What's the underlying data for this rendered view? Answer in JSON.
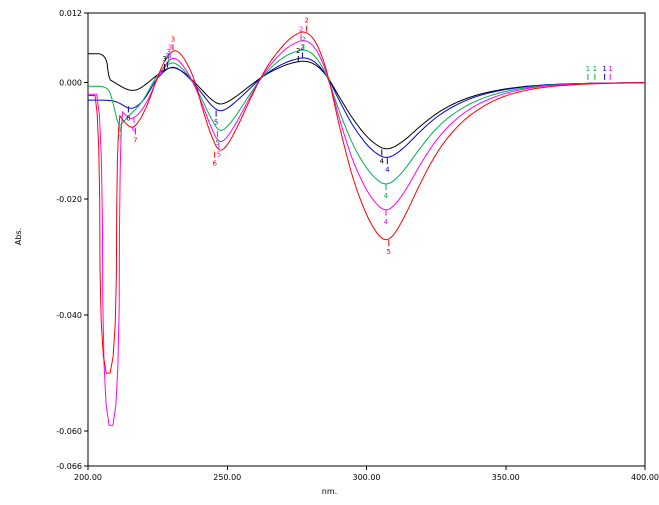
{
  "figure": {
    "background": "#ffffff"
  },
  "chart_data": {
    "type": "line",
    "title": "",
    "xlabel": "nm.",
    "ylabel": "Abs.",
    "xlim": [
      200,
      400
    ],
    "ylim": [
      -0.066,
      0.012
    ],
    "grid": false,
    "legend_position": "none",
    "x_ticks": [
      200,
      250,
      300,
      350,
      400
    ],
    "x_tick_labels": [
      "200.00",
      "250.00",
      "300.00",
      "350.00",
      "400.00"
    ],
    "y_ticks": [
      0.012,
      0,
      -0.02,
      -0.04,
      -0.06,
      -0.066
    ],
    "y_tick_labels": [
      "0.012",
      "0.000",
      "-0.020",
      "-0.040",
      "-0.060",
      "-0.066"
    ],
    "series": [
      {
        "name": "black",
        "color": "#000000",
        "points": [
          [
            200,
            0.005
          ],
          [
            206.5,
            0.005
          ],
          [
            207.5,
            0.0006
          ],
          [
            209,
            0.0002
          ],
          [
            211,
            -0.0004
          ],
          [
            214,
            -0.0012
          ],
          [
            217,
            -0.0014
          ],
          [
            220,
            -0.0006
          ],
          [
            224,
            0.001
          ],
          [
            227,
            0.0021
          ],
          [
            230,
            0.0027
          ],
          [
            233,
            0.0023
          ],
          [
            237,
            0.0007
          ],
          [
            241,
            -0.0013
          ],
          [
            244,
            -0.0028
          ],
          [
            247,
            -0.0038
          ],
          [
            250,
            -0.0034
          ],
          [
            254,
            -0.0021
          ],
          [
            259,
            -0.0002
          ],
          [
            264,
            0.0015
          ],
          [
            270,
            0.0029
          ],
          [
            274,
            0.0035
          ],
          [
            278,
            0.0038
          ],
          [
            282,
            0.0031
          ],
          [
            286,
            0.0011
          ],
          [
            290,
            -0.0023
          ],
          [
            295,
            -0.0062
          ],
          [
            300,
            -0.0093
          ],
          [
            304,
            -0.0109
          ],
          [
            307,
            -0.0115
          ],
          [
            310,
            -0.0111
          ],
          [
            314,
            -0.0098
          ],
          [
            319,
            -0.0076
          ],
          [
            325,
            -0.0053
          ],
          [
            332,
            -0.0034
          ],
          [
            340,
            -0.002
          ],
          [
            350,
            -0.001
          ],
          [
            362,
            -0.0004
          ],
          [
            378,
            -0.0001
          ],
          [
            400,
            0
          ]
        ]
      },
      {
        "name": "blue",
        "color": "#0000dd",
        "points": [
          [
            200,
            -0.003
          ],
          [
            208,
            -0.003
          ],
          [
            211,
            -0.0034
          ],
          [
            215,
            -0.0046
          ],
          [
            218,
            -0.004
          ],
          [
            221,
            -0.0024
          ],
          [
            224,
            0.0002
          ],
          [
            227,
            0.0019
          ],
          [
            230,
            0.0028
          ],
          [
            233,
            0.0023
          ],
          [
            237,
            0.0005
          ],
          [
            241,
            -0.0019
          ],
          [
            244,
            -0.0038
          ],
          [
            247,
            -0.005
          ],
          [
            250,
            -0.0045
          ],
          [
            254,
            -0.0029
          ],
          [
            259,
            -0.0006
          ],
          [
            264,
            0.0016
          ],
          [
            270,
            0.0033
          ],
          [
            274,
            0.004
          ],
          [
            278,
            0.0044
          ],
          [
            282,
            0.0035
          ],
          [
            286,
            0.0011
          ],
          [
            290,
            -0.0029
          ],
          [
            295,
            -0.0074
          ],
          [
            300,
            -0.0107
          ],
          [
            304,
            -0.0124
          ],
          [
            307,
            -0.013
          ],
          [
            310,
            -0.0125
          ],
          [
            314,
            -0.011
          ],
          [
            319,
            -0.0085
          ],
          [
            325,
            -0.0059
          ],
          [
            332,
            -0.0038
          ],
          [
            340,
            -0.0022
          ],
          [
            350,
            -0.0011
          ],
          [
            362,
            -0.0004
          ],
          [
            378,
            -0.0001
          ],
          [
            400,
            0
          ]
        ]
      },
      {
        "name": "green",
        "color": "#00b04f",
        "points": [
          [
            200,
            -0.0006
          ],
          [
            206,
            -0.0006
          ],
          [
            208,
            -0.0016
          ],
          [
            209.5,
            -0.0045
          ],
          [
            211,
            -0.0076
          ],
          [
            213,
            -0.0066
          ],
          [
            215,
            -0.0055
          ],
          [
            218,
            -0.0042
          ],
          [
            221,
            -0.0021
          ],
          [
            224,
            0.0007
          ],
          [
            227,
            0.0025
          ],
          [
            230,
            0.0036
          ],
          [
            233,
            0.0029
          ],
          [
            237,
            0.0007
          ],
          [
            241,
            -0.0029
          ],
          [
            244,
            -0.006
          ],
          [
            247,
            -0.0085
          ],
          [
            250,
            -0.0077
          ],
          [
            254,
            -0.0051
          ],
          [
            259,
            -0.0013
          ],
          [
            264,
            0.0019
          ],
          [
            270,
            0.0044
          ],
          [
            274,
            0.0053
          ],
          [
            278,
            0.0058
          ],
          [
            282,
            0.0045
          ],
          [
            286,
            0.0011
          ],
          [
            290,
            -0.0047
          ],
          [
            295,
            -0.0107
          ],
          [
            300,
            -0.0148
          ],
          [
            304,
            -0.0169
          ],
          [
            307,
            -0.0176
          ],
          [
            310,
            -0.0169
          ],
          [
            314,
            -0.0148
          ],
          [
            319,
            -0.0114
          ],
          [
            325,
            -0.0078
          ],
          [
            332,
            -0.005
          ],
          [
            340,
            -0.0029
          ],
          [
            350,
            -0.0014
          ],
          [
            362,
            -0.0005
          ],
          [
            378,
            -0.0001
          ],
          [
            400,
            0
          ]
        ]
      },
      {
        "name": "magenta",
        "color": "#ff00ff",
        "points": [
          [
            200,
            -0.002
          ],
          [
            205,
            -0.002
          ],
          [
            205.5,
            -0.059
          ],
          [
            211,
            -0.059
          ],
          [
            211.5,
            -0.0046
          ],
          [
            214,
            -0.0058
          ],
          [
            216,
            -0.0063
          ],
          [
            219,
            -0.005
          ],
          [
            222,
            -0.0026
          ],
          [
            225,
            0.0009
          ],
          [
            228,
            0.0033
          ],
          [
            230.5,
            0.0044
          ],
          [
            233,
            0.0037
          ],
          [
            237,
            0.0009
          ],
          [
            241,
            -0.0036
          ],
          [
            244,
            -0.0075
          ],
          [
            247,
            -0.0105
          ],
          [
            250,
            -0.0095
          ],
          [
            254,
            -0.0063
          ],
          [
            259,
            -0.0017
          ],
          [
            264,
            0.0023
          ],
          [
            270,
            0.0055
          ],
          [
            274,
            0.0068
          ],
          [
            278,
            0.0075
          ],
          [
            282,
            0.0059
          ],
          [
            286,
            0.0015
          ],
          [
            290,
            -0.0059
          ],
          [
            295,
            -0.0135
          ],
          [
            300,
            -0.0186
          ],
          [
            304,
            -0.0212
          ],
          [
            307,
            -0.0221
          ],
          [
            310,
            -0.0212
          ],
          [
            314,
            -0.0186
          ],
          [
            319,
            -0.0143
          ],
          [
            325,
            -0.0098
          ],
          [
            332,
            -0.0062
          ],
          [
            340,
            -0.0036
          ],
          [
            350,
            -0.0017
          ],
          [
            362,
            -0.0006
          ],
          [
            378,
            -0.0001
          ],
          [
            400,
            0
          ]
        ]
      },
      {
        "name": "red",
        "color": "#ff0000",
        "points": [
          [
            200,
            -0.0022
          ],
          [
            204,
            -0.0022
          ],
          [
            204.5,
            -0.05
          ],
          [
            210,
            -0.05
          ],
          [
            210.5,
            -0.005
          ],
          [
            213,
            -0.0068
          ],
          [
            216,
            -0.008
          ],
          [
            219,
            -0.0062
          ],
          [
            222,
            -0.0031
          ],
          [
            225,
            0.0011
          ],
          [
            228,
            0.0043
          ],
          [
            231,
            0.0058
          ],
          [
            234,
            0.0047
          ],
          [
            238,
            0.001
          ],
          [
            241,
            -0.0043
          ],
          [
            244,
            -0.0089
          ],
          [
            247,
            -0.012
          ],
          [
            250,
            -0.0109
          ],
          [
            254,
            -0.0073
          ],
          [
            259,
            -0.002
          ],
          [
            264,
            0.0027
          ],
          [
            270,
            0.0065
          ],
          [
            274,
            0.0082
          ],
          [
            278,
            0.009
          ],
          [
            282,
            0.0071
          ],
          [
            286,
            0.0019
          ],
          [
            290,
            -0.0071
          ],
          [
            295,
            -0.0165
          ],
          [
            300,
            -0.0229
          ],
          [
            304,
            -0.0262
          ],
          [
            307,
            -0.0273
          ],
          [
            310,
            -0.0262
          ],
          [
            314,
            -0.0228
          ],
          [
            319,
            -0.0176
          ],
          [
            325,
            -0.0121
          ],
          [
            332,
            -0.0077
          ],
          [
            340,
            -0.0045
          ],
          [
            350,
            -0.0021
          ],
          [
            362,
            -0.0008
          ],
          [
            378,
            -0.0002
          ],
          [
            400,
            0
          ]
        ]
      }
    ],
    "annotations": [
      {
        "x": 214.5,
        "y": -0.0046,
        "text": "6",
        "color": "#0000dd",
        "dir": "below"
      },
      {
        "x": 211.5,
        "y": -0.008,
        "text": "6",
        "color": "#00b04f",
        "dir": "below"
      },
      {
        "x": 216.5,
        "y": -0.0064,
        "text": "6",
        "color": "#ff00ff",
        "dir": "below"
      },
      {
        "x": 217.0,
        "y": -0.0084,
        "text": "7",
        "color": "#ff0000",
        "dir": "below"
      },
      {
        "x": 227.5,
        "y": 0.0027,
        "text": "3",
        "color": "#000000",
        "dir": "above"
      },
      {
        "x": 228.5,
        "y": 0.0031,
        "text": "3",
        "color": "#0000dd",
        "dir": "above"
      },
      {
        "x": 229.0,
        "y": 0.0039,
        "text": "3",
        "color": "#00b04f",
        "dir": "above"
      },
      {
        "x": 229.5,
        "y": 0.0047,
        "text": "3",
        "color": "#ff00ff",
        "dir": "above"
      },
      {
        "x": 230.5,
        "y": 0.0061,
        "text": "3",
        "color": "#ff0000",
        "dir": "above"
      },
      {
        "x": 246.0,
        "y": -0.0053,
        "text": "5",
        "color": "#0000dd",
        "dir": "below"
      },
      {
        "x": 246.5,
        "y": -0.0088,
        "text": "5",
        "color": "#00b04f",
        "dir": "below"
      },
      {
        "x": 247.0,
        "y": -0.0108,
        "text": "5",
        "color": "#ff00ff",
        "dir": "below"
      },
      {
        "x": 245.5,
        "y": -0.0124,
        "text": "6",
        "color": "#ff0000",
        "dir": "below"
      },
      {
        "x": 275.5,
        "y": 0.0041,
        "text": "2",
        "color": "#000000",
        "dir": "above"
      },
      {
        "x": 277.0,
        "y": 0.0047,
        "text": "2",
        "color": "#0000dd",
        "dir": "above"
      },
      {
        "x": 277.5,
        "y": 0.0061,
        "text": "2",
        "color": "#00b04f",
        "dir": "above"
      },
      {
        "x": 276.5,
        "y": 0.0078,
        "text": "2",
        "color": "#ff00ff",
        "dir": "above"
      },
      {
        "x": 278.5,
        "y": 0.0093,
        "text": "2",
        "color": "#ff0000",
        "dir": "above"
      },
      {
        "x": 305.5,
        "y": -0.012,
        "text": "4",
        "color": "#000000",
        "dir": "below"
      },
      {
        "x": 307.5,
        "y": -0.0135,
        "text": "4",
        "color": "#0000dd",
        "dir": "below"
      },
      {
        "x": 307.0,
        "y": -0.018,
        "text": "4",
        "color": "#00b04f",
        "dir": "below"
      },
      {
        "x": 307.0,
        "y": -0.0224,
        "text": "4",
        "color": "#ff00ff",
        "dir": "below"
      },
      {
        "x": 308.0,
        "y": -0.0276,
        "text": "5",
        "color": "#ff0000",
        "dir": "below"
      },
      {
        "x": 379.5,
        "y": 0.001,
        "text": "1",
        "color": "#00b04f",
        "dir": "above"
      },
      {
        "x": 382.0,
        "y": 0.001,
        "text": "1",
        "color": "#00b04f",
        "dir": "above"
      },
      {
        "x": 385.5,
        "y": 0.001,
        "text": "1",
        "color": "#0000dd",
        "dir": "above"
      },
      {
        "x": 387.5,
        "y": 0.001,
        "text": "1",
        "color": "#ff00ff",
        "dir": "above"
      }
    ]
  }
}
